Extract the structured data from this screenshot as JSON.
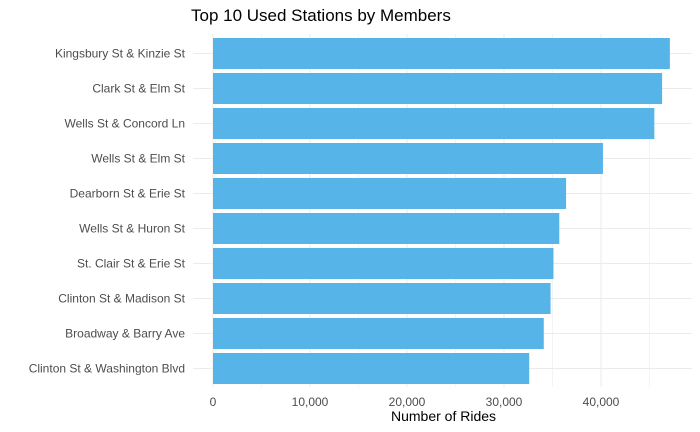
{
  "chart_data": {
    "type": "bar",
    "orientation": "horizontal",
    "title": "Top 10 Used Stations by Members",
    "xlabel": "Number of Rides",
    "ylabel": "",
    "categories": [
      "Kingsbury St & Kinzie St",
      "Clark St & Elm St",
      "Wells St & Concord Ln",
      "Wells St & Elm St",
      "Dearborn St & Erie St",
      "Wells St & Huron St",
      "St. Clair St & Erie St",
      "Clinton St & Madison St",
      "Broadway & Barry Ave",
      "Clinton St & Washington Blvd"
    ],
    "values": [
      47100,
      46300,
      45500,
      40200,
      36400,
      35700,
      35100,
      34800,
      34100,
      32600
    ],
    "xlim": [
      0,
      47100
    ],
    "xticks": [
      0,
      10000,
      20000,
      30000,
      40000
    ],
    "xtick_labels": [
      "0",
      "10,000",
      "20,000",
      "30,000",
      "40,000"
    ],
    "bar_color": "#56B4E9",
    "grid": true,
    "grid_color": "#EBEBEB",
    "background": "#FFFFFF",
    "legend": "none"
  }
}
